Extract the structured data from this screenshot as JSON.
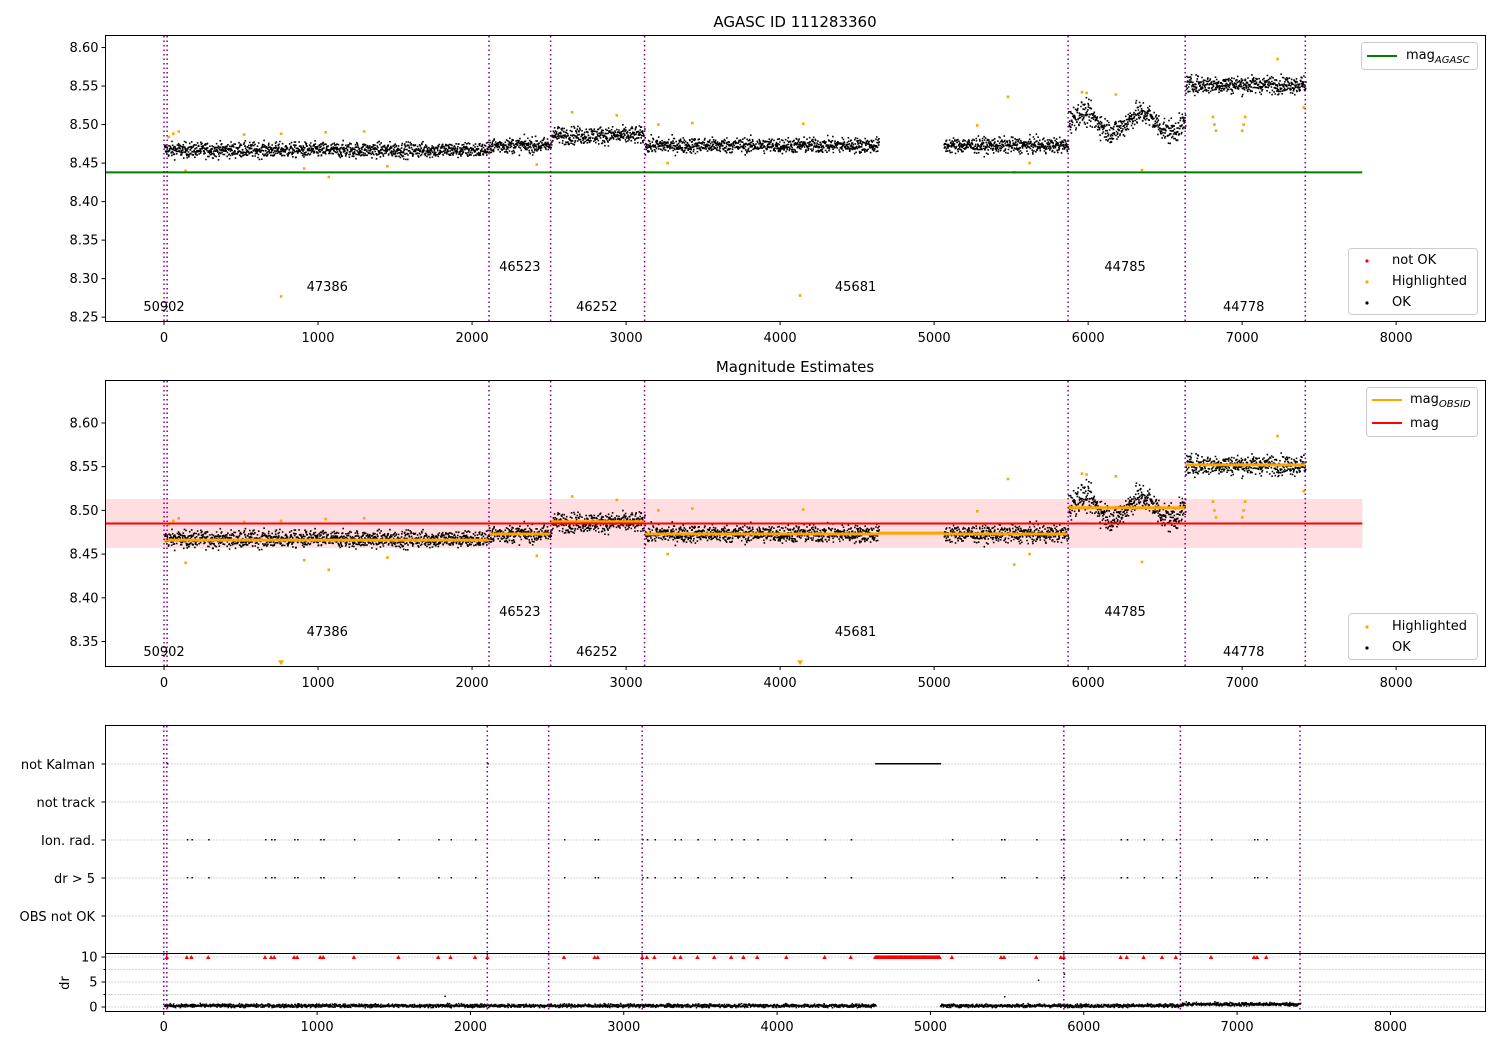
{
  "figure_title": "AGASC ID 111283360",
  "panel2_title": "Magnitude Estimates",
  "x_ticks": [
    0,
    1000,
    2000,
    3000,
    4000,
    5000,
    6000,
    7000,
    8000
  ],
  "x_range": [
    -380,
    8580
  ],
  "x_range_bottom": [
    -380,
    8620
  ],
  "vlines_x": [
    0,
    20,
    2110,
    2510,
    3120,
    5870,
    6630,
    7410
  ],
  "obsids": [
    {
      "x": 0,
      "label": "50902",
      "tier": 0
    },
    {
      "x": 1060,
      "label": "47386",
      "tier": 1
    },
    {
      "x": 2310,
      "label": "46523",
      "tier": 2
    },
    {
      "x": 2810,
      "label": "46252",
      "tier": 0
    },
    {
      "x": 4490,
      "label": "45681",
      "tier": 1
    },
    {
      "x": 6240,
      "label": "44785",
      "tier": 2
    },
    {
      "x": 7010,
      "label": "44778",
      "tier": 0
    }
  ],
  "colors": {
    "ok": "#000000",
    "highlighted": "#ffa500",
    "not_ok": "#ff0000",
    "mag_agasc": "#008000",
    "mag_obsid": "#ffa500",
    "mag": "#ff0000",
    "mag_band": "#ffdde0",
    "vline": "#800080"
  },
  "legend1": {
    "line_main": "mag",
    "line_sub": "AGASC",
    "points": [
      "not OK",
      "Highlighted",
      "OK"
    ]
  },
  "legend2": {
    "lines": [
      {
        "main": "mag",
        "sub": "OBSID"
      },
      {
        "main": "mag",
        "sub": ""
      }
    ],
    "points": [
      "Highlighted",
      "OK"
    ]
  },
  "flag_labels": [
    "not Kalman",
    "not track",
    "Ion. rad.",
    "dr > 5",
    "OBS not OK"
  ],
  "dr_label": "dr",
  "dr_ticks": [
    0,
    5,
    10
  ],
  "chart_data": [
    {
      "type": "scatter",
      "title": "AGASC ID 111283360",
      "ylim": [
        8.245,
        8.615
      ],
      "y_ticks": [
        8.25,
        8.3,
        8.35,
        8.4,
        8.45,
        8.5,
        8.55,
        8.6
      ],
      "mag_agasc": 8.438,
      "ok_segments": [
        {
          "x0": 0,
          "x1": 2110,
          "mean": 8.468,
          "spread": 0.007
        },
        {
          "x0": 2110,
          "x1": 2510,
          "mean": 8.474,
          "spread": 0.007
        },
        {
          "x0": 2510,
          "x1": 3120,
          "mean": 8.487,
          "spread": 0.008
        },
        {
          "x0": 3120,
          "x1": 4640,
          "mean": 8.474,
          "spread": 0.007
        },
        {
          "x0": 5060,
          "x1": 5870,
          "mean": 8.474,
          "spread": 0.007
        },
        {
          "x0": 5870,
          "x1": 6630,
          "mean": 8.504,
          "spread": 0.011
        },
        {
          "x0": 6630,
          "x1": 7410,
          "mean": 8.553,
          "spread": 0.008
        }
      ],
      "highlighted_points": [
        [
          30,
          8.484
        ],
        [
          60,
          8.488
        ],
        [
          95,
          8.491
        ],
        [
          140,
          8.44
        ],
        [
          520,
          8.487
        ],
        [
          760,
          8.277
        ],
        [
          760,
          8.488
        ],
        [
          910,
          8.443
        ],
        [
          1050,
          8.49
        ],
        [
          1070,
          8.432
        ],
        [
          1300,
          8.491
        ],
        [
          1450,
          8.446
        ],
        [
          2420,
          8.448
        ],
        [
          2650,
          8.516
        ],
        [
          2940,
          8.512
        ],
        [
          3210,
          8.5
        ],
        [
          3270,
          8.45
        ],
        [
          3430,
          8.502
        ],
        [
          4130,
          8.278
        ],
        [
          4150,
          8.501
        ],
        [
          5280,
          8.499
        ],
        [
          5480,
          8.536
        ],
        [
          5520,
          8.438
        ],
        [
          5620,
          8.45
        ],
        [
          5960,
          8.542
        ],
        [
          5990,
          8.541
        ],
        [
          6180,
          8.539
        ],
        [
          6350,
          8.441
        ],
        [
          6810,
          8.51
        ],
        [
          6820,
          8.5
        ],
        [
          6830,
          8.492
        ],
        [
          7020,
          8.51
        ],
        [
          7010,
          8.5
        ],
        [
          7000,
          8.492
        ],
        [
          7230,
          8.585
        ],
        [
          7400,
          8.522
        ]
      ]
    },
    {
      "type": "scatter",
      "title": "Magnitude Estimates",
      "ylim": [
        8.322,
        8.648
      ],
      "y_ticks": [
        8.35,
        8.4,
        8.45,
        8.5,
        8.55,
        8.6
      ],
      "mag": 8.485,
      "mag_band": [
        8.457,
        8.513
      ],
      "mag_obsid": [
        {
          "x0": 0,
          "x1": 2110,
          "y": 8.466
        },
        {
          "x0": 2110,
          "x1": 2510,
          "y": 8.473
        },
        {
          "x0": 2510,
          "x1": 3120,
          "y": 8.487
        },
        {
          "x0": 3120,
          "x1": 4640,
          "y": 8.473
        },
        {
          "x0": 4640,
          "x1": 5060,
          "y": 8.474
        },
        {
          "x0": 5060,
          "x1": 5870,
          "y": 8.473
        },
        {
          "x0": 5870,
          "x1": 6630,
          "y": 8.503
        },
        {
          "x0": 6630,
          "x1": 7410,
          "y": 8.552
        }
      ]
    },
    {
      "type": "scatter",
      "title": "",
      "ylabel": "dr",
      "dr_ylim": [
        -0.8,
        10.6
      ],
      "not_kalman_range": [
        4640,
        5060
      ],
      "ion_rad_x": [
        150,
        180,
        290,
        660,
        700,
        720,
        850,
        870,
        1020,
        1040,
        1240,
        1530,
        1790,
        1870,
        2030,
        2610,
        2810,
        2830,
        3120,
        3150,
        3200,
        3330,
        3370,
        3480,
        3590,
        3700,
        3780,
        3870,
        4060,
        4310,
        4480,
        5140,
        5460,
        5480,
        5690,
        5850,
        5870,
        6240,
        6280,
        6390,
        6510,
        6600,
        6830,
        7110,
        7130,
        7190
      ],
      "dr_outliers": [
        [
          1830,
          2.3
        ],
        [
          5480,
          2.2
        ],
        [
          5700,
          5.5
        ],
        [
          5870,
          6.7
        ]
      ]
    }
  ]
}
